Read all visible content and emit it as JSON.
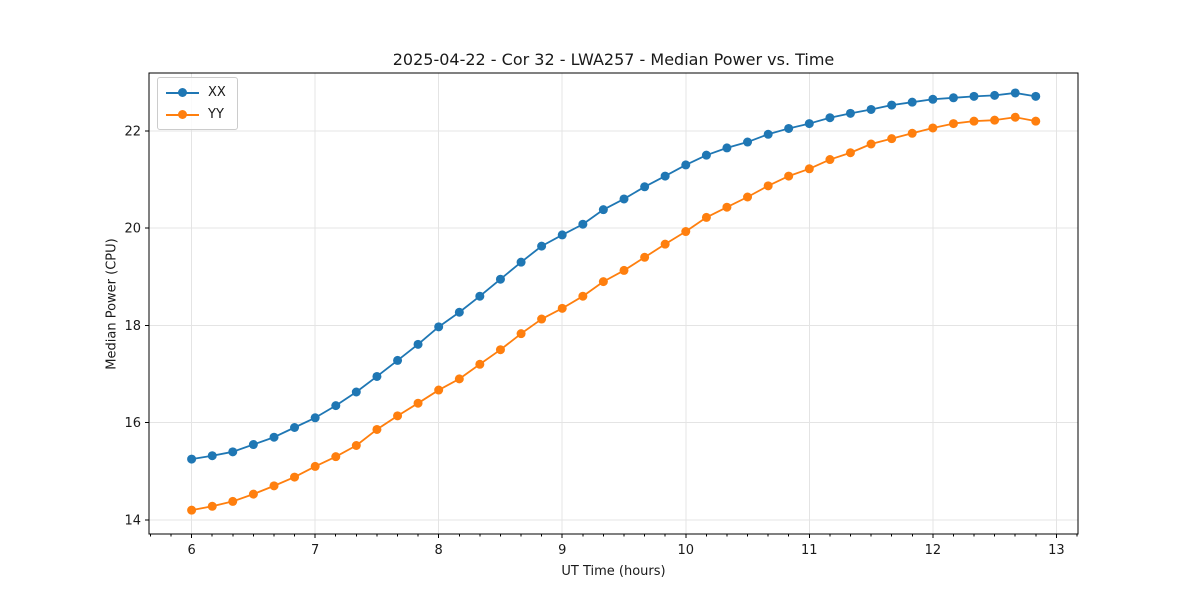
{
  "chart_data": {
    "type": "line",
    "title": "2025-04-22 - Cor 32 - LWA257 - Median Power vs. Time",
    "xlabel": "UT Time (hours)",
    "ylabel": "Median Power (CPU)",
    "xlim": [
      5.655,
      13.175
    ],
    "ylim": [
      13.71,
      23.19
    ],
    "xticks": [
      6,
      7,
      8,
      9,
      10,
      11,
      12,
      13
    ],
    "yticks": [
      14,
      16,
      18,
      20,
      22
    ],
    "minor_xtick_interval_hours": 0.1667,
    "grid": true,
    "legend_position": "upper-left",
    "x": [
      6.0,
      6.167,
      6.333,
      6.5,
      6.667,
      6.833,
      7.0,
      7.167,
      7.333,
      7.5,
      7.667,
      7.833,
      8.0,
      8.167,
      8.333,
      8.5,
      8.667,
      8.833,
      9.0,
      9.167,
      9.333,
      9.5,
      9.667,
      9.833,
      10.0,
      10.167,
      10.333,
      10.5,
      10.667,
      10.833,
      11.0,
      11.167,
      11.333,
      11.5,
      11.667,
      11.833,
      12.0,
      12.167,
      12.333,
      12.5,
      12.667,
      12.833
    ],
    "series": [
      {
        "name": "XX",
        "color": "#1f77b4",
        "values": [
          15.25,
          15.32,
          15.4,
          15.55,
          15.7,
          15.9,
          16.1,
          16.35,
          16.63,
          16.95,
          17.28,
          17.61,
          17.97,
          18.27,
          18.6,
          18.95,
          19.3,
          19.63,
          19.86,
          20.08,
          20.38,
          20.6,
          20.85,
          21.07,
          21.3,
          21.5,
          21.65,
          21.77,
          21.93,
          22.05,
          22.15,
          22.27,
          22.36,
          22.44,
          22.53,
          22.59,
          22.65,
          22.68,
          22.71,
          22.73,
          22.78,
          22.71
        ]
      },
      {
        "name": "YY",
        "color": "#ff7f0e",
        "values": [
          14.2,
          14.28,
          14.38,
          14.53,
          14.7,
          14.88,
          15.1,
          15.3,
          15.53,
          15.86,
          16.14,
          16.4,
          16.67,
          16.9,
          17.2,
          17.5,
          17.83,
          18.13,
          18.35,
          18.6,
          18.9,
          19.13,
          19.4,
          19.67,
          19.93,
          20.22,
          20.43,
          20.64,
          20.87,
          21.07,
          21.22,
          21.41,
          21.55,
          21.73,
          21.84,
          21.95,
          22.06,
          22.15,
          22.2,
          22.22,
          22.28,
          22.2
        ]
      }
    ],
    "colors": {
      "series_xx": "#1f77b4",
      "series_yy": "#ff7f0e",
      "grid": "#e4e4e4",
      "spine": "#000000",
      "text": "#1a1a1a",
      "background": "#ffffff"
    }
  }
}
